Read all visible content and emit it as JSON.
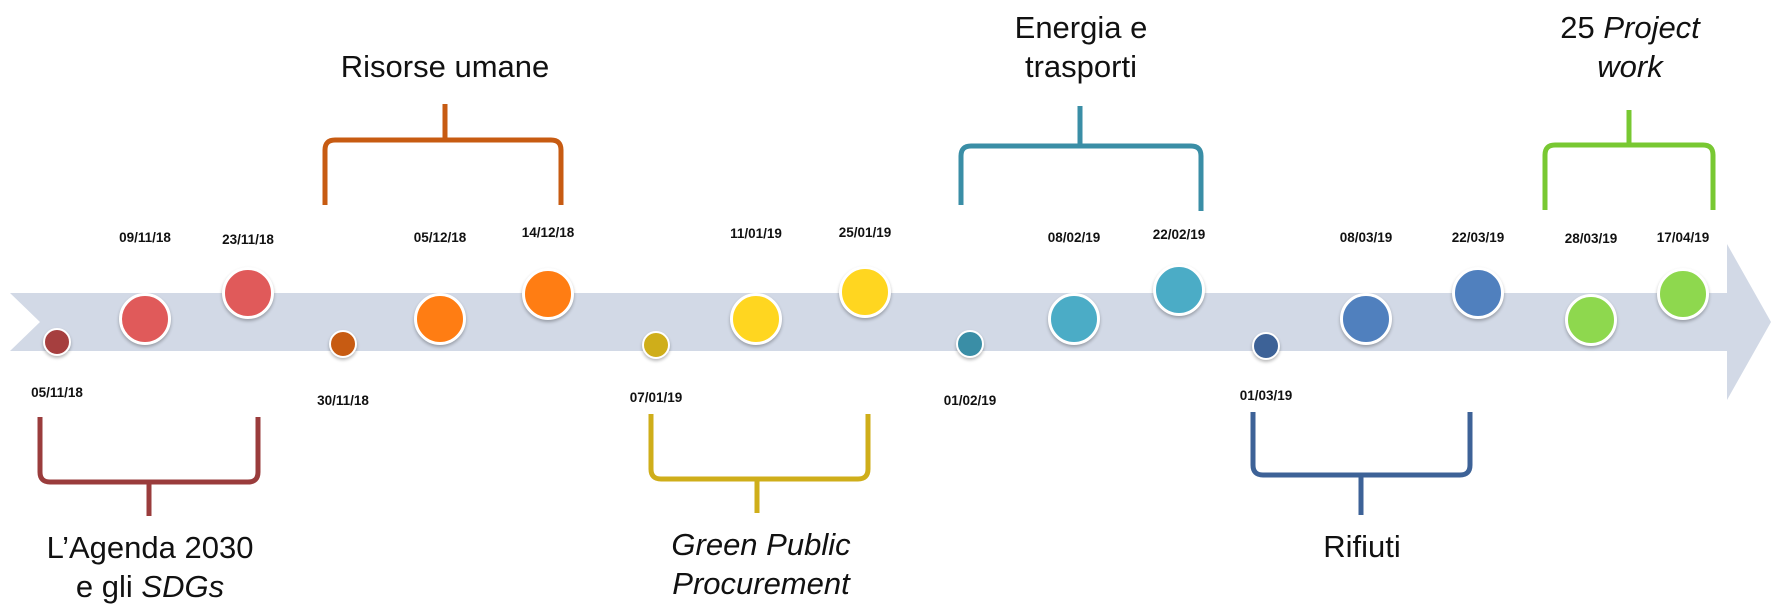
{
  "colors": {
    "arrow": "#d2d9e6",
    "agenda": "#9a3c3c",
    "risorse": "#c75b12",
    "gpp": "#cfae1a",
    "energia": "#3a8ea6",
    "rifiuti": "#3d6297",
    "project": "#78c832"
  },
  "events": [
    {
      "date": "05/11/18",
      "color": "#a63f3f",
      "size": "small"
    },
    {
      "date": "09/11/18",
      "color": "#e05a5a",
      "size": "large"
    },
    {
      "date": "23/11/18",
      "color": "#e05a5a",
      "size": "large"
    },
    {
      "date": "30/11/18",
      "color": "#c75b12",
      "size": "small"
    },
    {
      "date": "05/12/18",
      "color": "#ff7d13",
      "size": "large"
    },
    {
      "date": "14/12/18",
      "color": "#ff7d13",
      "size": "large"
    },
    {
      "date": "07/01/19",
      "color": "#cfae1a",
      "size": "small"
    },
    {
      "date": "11/01/19",
      "color": "#ffd620",
      "size": "large"
    },
    {
      "date": "25/01/19",
      "color": "#ffd620",
      "size": "large"
    },
    {
      "date": "01/02/19",
      "color": "#3a8ea6",
      "size": "small"
    },
    {
      "date": "08/02/19",
      "color": "#4bacc6",
      "size": "large"
    },
    {
      "date": "22/02/19",
      "color": "#4bacc6",
      "size": "large"
    },
    {
      "date": "01/03/19",
      "color": "#3d6297",
      "size": "small"
    },
    {
      "date": "08/03/19",
      "color": "#5080be",
      "size": "large"
    },
    {
      "date": "22/03/19",
      "color": "#5080be",
      "size": "large"
    },
    {
      "date": "28/03/19",
      "color": "#8ed84e",
      "size": "large"
    },
    {
      "date": "17/04/19",
      "color": "#8ed84e",
      "size": "large"
    }
  ],
  "groups": {
    "agenda": {
      "line1_pre": "L’Agenda 2030",
      "line2_pre": "e gli ",
      "line2_it": "SDGs"
    },
    "risorse": {
      "text": "Risorse umane"
    },
    "gpp": {
      "line1_it": "Green Public",
      "line2_it": "Procurement"
    },
    "energia": {
      "line1": "Energia e",
      "line2": "trasporti"
    },
    "rifiuti": {
      "text": "Rifiuti"
    },
    "project": {
      "line1_pre": "25 ",
      "line1_it": "Project",
      "line2_it": "work"
    }
  }
}
